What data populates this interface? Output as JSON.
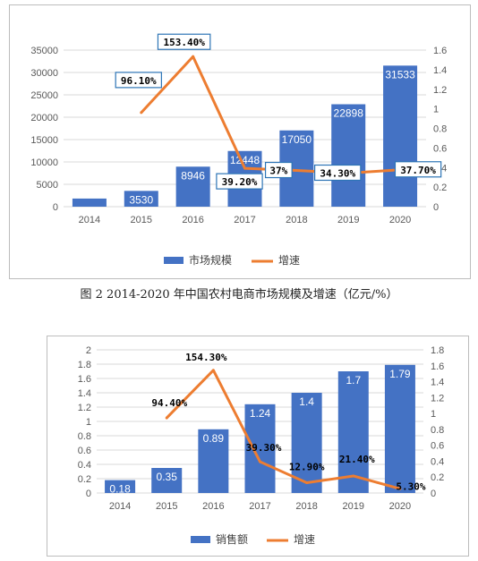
{
  "caption": "图 2   2014-2020 年中国农村电商市场规模及增速（亿元/%）",
  "chart_data": [
    {
      "type": "bar",
      "categories": [
        "2014",
        "2015",
        "2016",
        "2017",
        "2018",
        "2019",
        "2020"
      ],
      "series": [
        {
          "name": "市场规模",
          "type": "bar",
          "axis": "left",
          "color": "#4472C4",
          "values": [
            1817,
            3530,
            8946,
            12448,
            17050,
            22898,
            31533
          ],
          "labels": [
            "",
            "3530",
            "8946",
            "12448",
            "17050",
            "22898",
            "31533"
          ]
        },
        {
          "name": "增速",
          "type": "line",
          "axis": "right",
          "color": "#ED7D31",
          "values": [
            null,
            0.961,
            1.534,
            0.392,
            0.37,
            0.343,
            0.377
          ],
          "labels": [
            "",
            "96.10%",
            "153.40%",
            "39.20%",
            "37%",
            "34.30%",
            "37.70%"
          ]
        }
      ],
      "ylim_left": [
        0,
        35000
      ],
      "yticks_left": [
        "0",
        "5000",
        "10000",
        "15000",
        "20000",
        "25000",
        "30000",
        "35000"
      ],
      "ylim_right": [
        0,
        1.6
      ],
      "yticks_right": [
        "0",
        "0.2",
        "0.4",
        "0.6",
        "0.8",
        "1",
        "1.2",
        "1.4",
        "1.6"
      ],
      "grid": true,
      "legend": "bottom",
      "legend_items": [
        "市场规模",
        "增速"
      ]
    },
    {
      "type": "bar",
      "categories": [
        "2014",
        "2015",
        "2016",
        "2017",
        "2018",
        "2019",
        "2020"
      ],
      "series": [
        {
          "name": "销售额",
          "type": "bar",
          "axis": "left",
          "color": "#4472C4",
          "values": [
            0.18,
            0.35,
            0.89,
            1.24,
            1.4,
            1.7,
            1.79
          ],
          "labels": [
            "0.18",
            "0.35",
            "0.89",
            "1.24",
            "1.4",
            "1.7",
            "1.79"
          ]
        },
        {
          "name": "增速",
          "type": "line",
          "axis": "right",
          "color": "#ED7D31",
          "values": [
            null,
            0.944,
            1.543,
            0.393,
            0.129,
            0.214,
            0.053
          ],
          "labels": [
            "",
            "94.40%",
            "154.30%",
            "39.30%",
            "12.90%",
            "21.40%",
            "5.30%"
          ]
        }
      ],
      "ylim_left": [
        0,
        2
      ],
      "yticks_left": [
        "0",
        "0.2",
        "0.4",
        "0.6",
        "0.8",
        "1",
        "1.2",
        "1.4",
        "1.6",
        "1.8",
        "2"
      ],
      "ylim_right": [
        0,
        1.8
      ],
      "yticks_right": [
        "0",
        "0.2",
        "0.4",
        "0.6",
        "0.8",
        "1",
        "1.2",
        "1.4",
        "1.6",
        "1.8"
      ],
      "grid": true,
      "legend": "bottom",
      "legend_items": [
        "销售额",
        "增速"
      ]
    }
  ]
}
